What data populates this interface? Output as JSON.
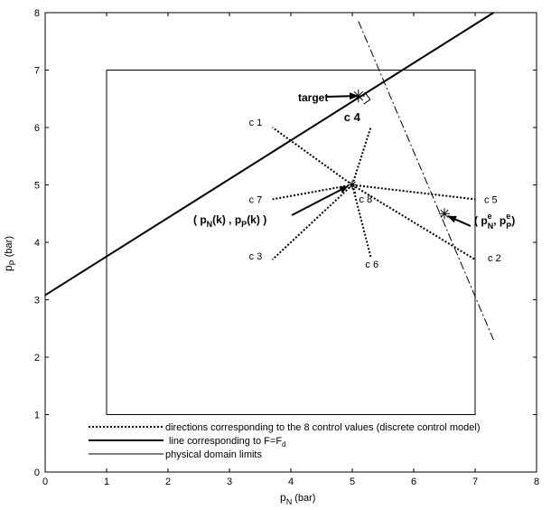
{
  "chart_data": {
    "type": "line",
    "xlim": [
      0,
      8
    ],
    "ylim": [
      0,
      8
    ],
    "x_ticks": [
      "0",
      "1",
      "2",
      "3",
      "4",
      "5",
      "6",
      "7",
      "8"
    ],
    "y_ticks": [
      "0",
      "1",
      "2",
      "3",
      "4",
      "5",
      "6",
      "7",
      "8"
    ],
    "xlabel": {
      "main": "p",
      "sub": "N",
      "unit": " (bar)"
    },
    "ylabel": {
      "main": "p",
      "sub": "P",
      "unit": " (bar)"
    },
    "grid": false,
    "legend_position": "bottom",
    "legend": [
      {
        "style": "dotted",
        "label": "directions corresponding to the 8 control values (discrete control model)"
      },
      {
        "style": "thick",
        "label_main": "line corresponding to F=F",
        "label_sub": "d"
      },
      {
        "style": "thin",
        "label": "physical domain limits"
      }
    ],
    "domain_rect": {
      "x": [
        1,
        7
      ],
      "y": [
        1,
        7
      ]
    },
    "force_line": {
      "x": [
        0,
        7.3
      ],
      "y": [
        3.08,
        8.0
      ]
    },
    "dashdot_line": {
      "x": [
        5.1,
        7.3
      ],
      "y": [
        7.85,
        2.3
      ]
    },
    "center_point": {
      "x": 5.0,
      "y": 5.0
    },
    "equilibrium_point": {
      "x": 6.5,
      "y": 4.5
    },
    "target_point": {
      "x": 5.1,
      "y": 6.55
    },
    "control_directions": [
      {
        "label": "c 1",
        "x": 3.7,
        "y": 6.0
      },
      {
        "label": "c 2",
        "x": 7.0,
        "y": 3.7
      },
      {
        "label": "c 3",
        "x": 3.7,
        "y": 3.7
      },
      {
        "label": "c 4",
        "x": 5.3,
        "y": 6.0
      },
      {
        "label": "c 5",
        "x": 7.0,
        "y": 4.75
      },
      {
        "label": "c 6",
        "x": 5.3,
        "y": 3.75
      },
      {
        "label": "c 7",
        "x": 3.7,
        "y": 4.75
      },
      {
        "label": "c 8",
        "x": 5.05,
        "y": 4.85
      }
    ],
    "annotations": {
      "target": "target",
      "center_open": "( p",
      "center_n_sub": "N",
      "center_mid": "(k) , p",
      "center_p_sub": "P",
      "center_close": "(k) )",
      "eq_open": "( p",
      "eq_sup": "e",
      "eq_n_sub": "N",
      "eq_mid": ", p",
      "eq_p_sub": "P",
      "eq_close": ")"
    }
  }
}
